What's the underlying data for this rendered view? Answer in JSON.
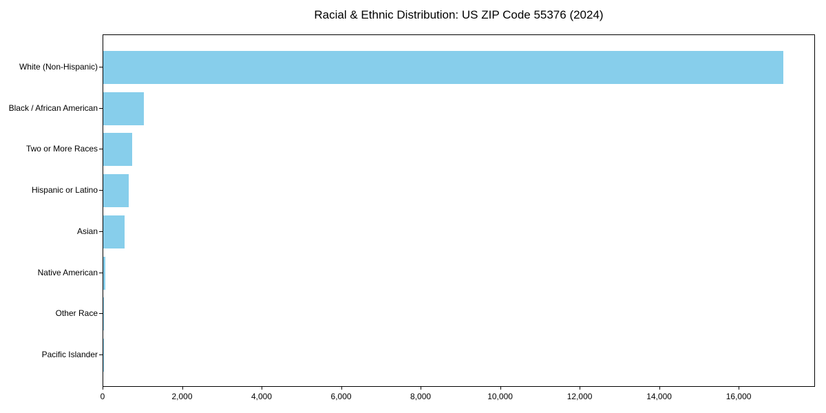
{
  "chart_data": {
    "type": "bar",
    "orientation": "horizontal",
    "title": "Racial & Ethnic Distribution: US ZIP Code 55376 (2024)",
    "categories": [
      "White (Non-Hispanic)",
      "Black / African American",
      "Two or More Races",
      "Hispanic or Latino",
      "Asian",
      "Native American",
      "Other Race",
      "Pacific Islander"
    ],
    "values": [
      17100,
      1020,
      720,
      635,
      545,
      45,
      12,
      4
    ],
    "title_text_color": "#000000",
    "bar_color": "#87CEEB",
    "axis_color": "#000000",
    "xlabel": "",
    "ylabel": "",
    "xlim": [
      0,
      17920
    ],
    "xticks": [
      0,
      2000,
      4000,
      6000,
      8000,
      10000,
      12000,
      14000,
      16000
    ],
    "xtick_labels": [
      "0",
      "2,000",
      "4,000",
      "6,000",
      "8,000",
      "10,000",
      "12,000",
      "14,000",
      "16,000"
    ],
    "grid": false,
    "legend": false
  }
}
